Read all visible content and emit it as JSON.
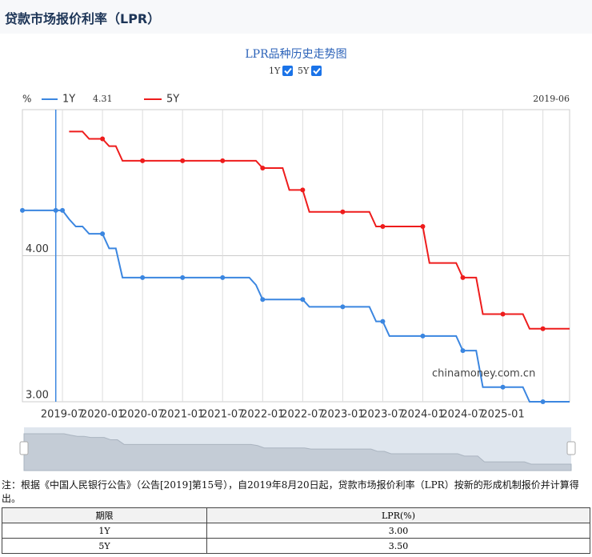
{
  "page_title": "贷款市场报价利率（LPR）",
  "chart_data": {
    "type": "line",
    "title": "LPR品种历史走势图",
    "y_unit": "%",
    "watermark": "chinamoney.com.cn",
    "categories": [
      null,
      null,
      null,
      null,
      null,
      null,
      "2019-07",
      null,
      null,
      null,
      null,
      null,
      "2020-01",
      null,
      null,
      null,
      null,
      null,
      "2020-07",
      null,
      null,
      null,
      null,
      null,
      "2021-01",
      null,
      null,
      null,
      null,
      null,
      "2021-07",
      null,
      null,
      null,
      null,
      null,
      "2022-01",
      null,
      null,
      null,
      null,
      null,
      "2022-07",
      null,
      null,
      null,
      null,
      null,
      "2023-01",
      null,
      null,
      null,
      null,
      null,
      "2023-07",
      null,
      null,
      null,
      null,
      null,
      "2024-01",
      null,
      null,
      null,
      null,
      null,
      "2024-07",
      null,
      null,
      null,
      null,
      null,
      "2025-01",
      null,
      null,
      null,
      null,
      null,
      null,
      null,
      null,
      null,
      null
    ],
    "series": [
      {
        "name": "1Y",
        "color": "#3b86e0",
        "values": [
          4.31,
          4.31,
          4.31,
          4.31,
          4.31,
          4.31,
          4.31,
          4.25,
          4.2,
          4.2,
          4.15,
          4.15,
          4.15,
          4.05,
          4.05,
          3.85,
          3.85,
          3.85,
          3.85,
          3.85,
          3.85,
          3.85,
          3.85,
          3.85,
          3.85,
          3.85,
          3.85,
          3.85,
          3.85,
          3.85,
          3.85,
          3.85,
          3.85,
          3.85,
          3.85,
          3.8,
          3.7,
          3.7,
          3.7,
          3.7,
          3.7,
          3.7,
          3.7,
          3.65,
          3.65,
          3.65,
          3.65,
          3.65,
          3.65,
          3.65,
          3.65,
          3.65,
          3.65,
          3.55,
          3.55,
          3.45,
          3.45,
          3.45,
          3.45,
          3.45,
          3.45,
          3.45,
          3.45,
          3.45,
          3.45,
          3.45,
          3.35,
          3.35,
          3.35,
          3.1,
          3.1,
          3.1,
          3.1,
          3.1,
          3.1,
          3.1,
          3.0,
          3.0,
          3.0,
          3.0,
          3.0,
          3.0,
          3.0
        ]
      },
      {
        "name": "5Y",
        "color": "#ee1c1c",
        "values": [
          null,
          null,
          null,
          null,
          null,
          null,
          null,
          4.85,
          4.85,
          4.85,
          4.8,
          4.8,
          4.8,
          4.75,
          4.75,
          4.65,
          4.65,
          4.65,
          4.65,
          4.65,
          4.65,
          4.65,
          4.65,
          4.65,
          4.65,
          4.65,
          4.65,
          4.65,
          4.65,
          4.65,
          4.65,
          4.65,
          4.65,
          4.65,
          4.65,
          4.65,
          4.6,
          4.6,
          4.6,
          4.6,
          4.45,
          4.45,
          4.45,
          4.3,
          4.3,
          4.3,
          4.3,
          4.3,
          4.3,
          4.3,
          4.3,
          4.3,
          4.3,
          4.2,
          4.2,
          4.2,
          4.2,
          4.2,
          4.2,
          4.2,
          4.2,
          3.95,
          3.95,
          3.95,
          3.95,
          3.95,
          3.85,
          3.85,
          3.85,
          3.6,
          3.6,
          3.6,
          3.6,
          3.6,
          3.6,
          3.6,
          3.5,
          3.5,
          3.5,
          3.5,
          3.5,
          3.5,
          3.5
        ]
      }
    ],
    "pointer": {
      "x": "2019-06",
      "value": 4.31
    },
    "ylim": [
      3,
      5
    ],
    "yticks": [
      {
        "value": 3,
        "label": "3.00"
      },
      {
        "value": 4,
        "label": "4.00"
      }
    ],
    "grid": true
  },
  "note": "注：根据《中国人民银行公告》（公告[2019]第15号），自2019年8月20日起，贷款市场报价利率（LPR）按新的形成机制报价并计算得出。",
  "table": {
    "header": [
      "期限",
      "LPR(%)"
    ],
    "rows": [
      [
        "1Y",
        "3.00"
      ],
      [
        "5Y",
        "3.50"
      ]
    ]
  }
}
